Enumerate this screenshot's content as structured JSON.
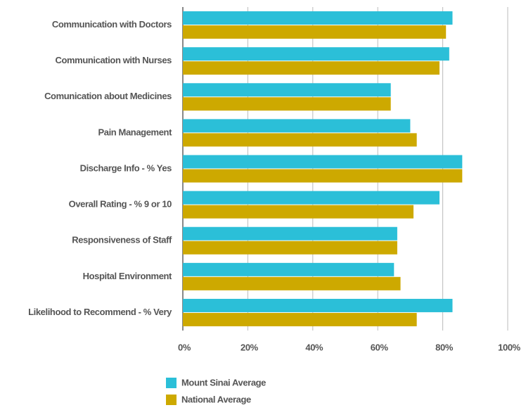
{
  "chart_data": {
    "type": "barh",
    "categories": [
      "Communication with Doctors",
      "Communication with Nurses",
      "Comunication about Medicines",
      "Pain Management",
      "Discharge Info - % Yes",
      "Overall Rating - % 9 or 10",
      "Responsiveness of Staff",
      "Hospital Environment",
      "Likelihood to Recommend - % Very"
    ],
    "series": [
      {
        "name": "Mount Sinai Average",
        "color": "#2bbfd8",
        "values": [
          83,
          82,
          64,
          70,
          86,
          79,
          66,
          65,
          83
        ]
      },
      {
        "name": "National Average",
        "color": "#cda900",
        "values": [
          81,
          79,
          64,
          72,
          86,
          71,
          66,
          67,
          72
        ]
      }
    ],
    "xlim": [
      0,
      100
    ],
    "xticks": [
      {
        "value": 0,
        "label": "0%"
      },
      {
        "value": 20,
        "label": "20%"
      },
      {
        "value": 40,
        "label": "40%"
      },
      {
        "value": 60,
        "label": "60%"
      },
      {
        "value": 80,
        "label": "80%"
      },
      {
        "value": 100,
        "label": "100%"
      }
    ],
    "grid": true
  }
}
